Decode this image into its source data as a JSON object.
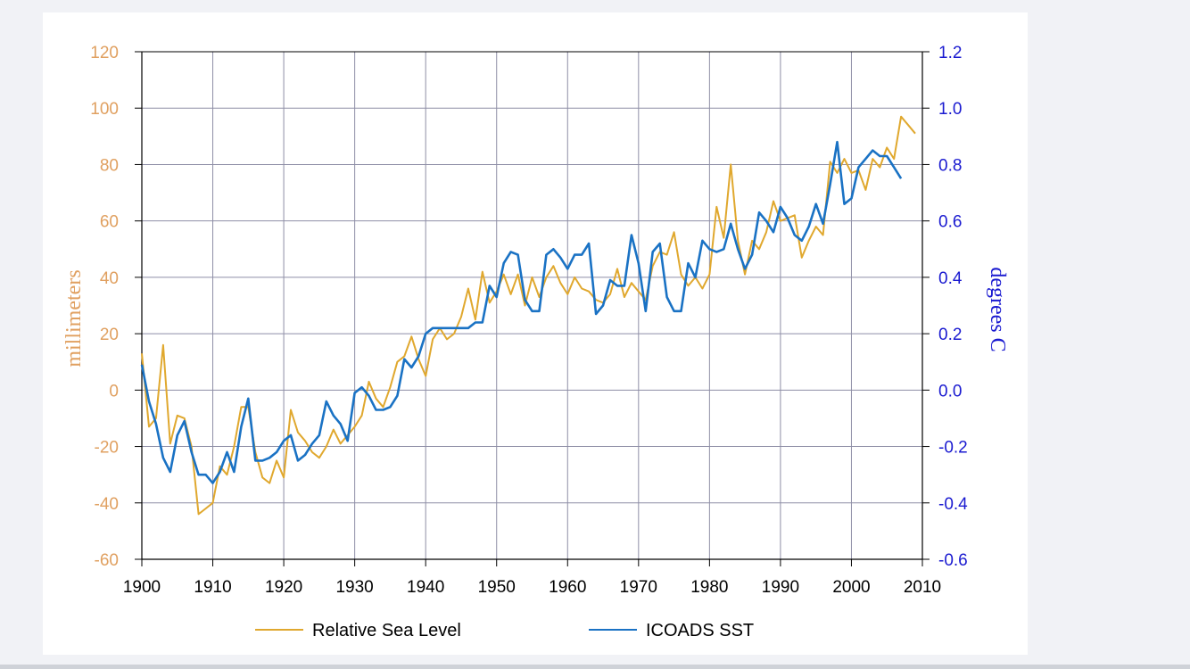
{
  "chart_data": {
    "type": "line",
    "title": "",
    "xlabel": "",
    "ylabel_left": "millimeters",
    "ylabel_right": "degrees C",
    "xlim": [
      1900,
      2010
    ],
    "ylim_left": [
      -60,
      120
    ],
    "ylim_right": [
      -0.6,
      1.2
    ],
    "x_ticks": [
      1900,
      1910,
      1920,
      1930,
      1940,
      1950,
      1960,
      1970,
      1980,
      1990,
      2000,
      2010
    ],
    "y_left_ticks": [
      "-60",
      "-40",
      "-20",
      "0",
      "20",
      "40",
      "60",
      "80",
      "100",
      "120"
    ],
    "y_right_ticks": [
      "-0.6",
      "-0.4",
      "-0.2",
      "0.0",
      "0.2",
      "0.4",
      "0.6",
      "0.8",
      "1.0",
      "1.2"
    ],
    "grid": true,
    "legend_position": "bottom",
    "series": [
      {
        "name": "Relative Sea Level",
        "axis": "left",
        "color": "#e0a82e",
        "x": [
          1900,
          1901,
          1902,
          1903,
          1904,
          1905,
          1906,
          1907,
          1908,
          1909,
          1910,
          1911,
          1912,
          1913,
          1914,
          1915,
          1916,
          1917,
          1918,
          1919,
          1920,
          1921,
          1922,
          1923,
          1924,
          1925,
          1926,
          1927,
          1928,
          1929,
          1930,
          1931,
          1932,
          1933,
          1934,
          1935,
          1936,
          1937,
          1938,
          1939,
          1940,
          1941,
          1942,
          1943,
          1944,
          1945,
          1946,
          1947,
          1948,
          1949,
          1950,
          1951,
          1952,
          1953,
          1954,
          1955,
          1956,
          1957,
          1958,
          1959,
          1960,
          1961,
          1962,
          1963,
          1964,
          1965,
          1966,
          1967,
          1968,
          1969,
          1970,
          1971,
          1972,
          1973,
          1974,
          1975,
          1976,
          1977,
          1978,
          1979,
          1980,
          1981,
          1982,
          1983,
          1984,
          1985,
          1986,
          1987,
          1988,
          1989,
          1990,
          1991,
          1992,
          1993,
          1994,
          1995,
          1996,
          1997,
          1998,
          1999,
          2000,
          2001,
          2002,
          2003,
          2004,
          2005,
          2006,
          2007,
          2008,
          2009
        ],
        "values": [
          13,
          -13,
          -10,
          16,
          -19,
          -9,
          -10,
          -20,
          -44,
          -42,
          -40,
          -27,
          -30,
          -20,
          -6,
          -6,
          -22,
          -31,
          -33,
          -25,
          -31,
          -7,
          -15,
          -18,
          -22,
          -24,
          -20,
          -14,
          -19,
          -16,
          -13,
          -9,
          3,
          -3,
          -6,
          1,
          10,
          12,
          19,
          11,
          5,
          18,
          22,
          18,
          20,
          26,
          36,
          25,
          42,
          31,
          35,
          41,
          34,
          41,
          30,
          40,
          33,
          40,
          44,
          38,
          34,
          40,
          36,
          35,
          32,
          31,
          34,
          43,
          33,
          38,
          35,
          32,
          44,
          49,
          48,
          56,
          41,
          37,
          40,
          36,
          41,
          65,
          54,
          80,
          53,
          41,
          53,
          50,
          56,
          67,
          60,
          61,
          62,
          47,
          53,
          58,
          55,
          81,
          77,
          82,
          77,
          78,
          71,
          82,
          79,
          86,
          82,
          97,
          94,
          91
        ]
      },
      {
        "name": "ICOADS SST",
        "axis": "right",
        "color": "#1a72c4",
        "x": [
          1900,
          1901,
          1902,
          1903,
          1904,
          1905,
          1906,
          1907,
          1908,
          1909,
          1910,
          1911,
          1912,
          1913,
          1914,
          1915,
          1916,
          1917,
          1918,
          1919,
          1920,
          1921,
          1922,
          1923,
          1924,
          1925,
          1926,
          1927,
          1928,
          1929,
          1930,
          1931,
          1932,
          1933,
          1934,
          1935,
          1936,
          1937,
          1938,
          1939,
          1940,
          1941,
          1942,
          1943,
          1944,
          1945,
          1946,
          1947,
          1948,
          1949,
          1950,
          1951,
          1952,
          1953,
          1954,
          1955,
          1956,
          1957,
          1958,
          1959,
          1960,
          1961,
          1962,
          1963,
          1964,
          1965,
          1966,
          1967,
          1968,
          1969,
          1970,
          1971,
          1972,
          1973,
          1974,
          1975,
          1976,
          1977,
          1978,
          1979,
          1980,
          1981,
          1982,
          1983,
          1984,
          1985,
          1986,
          1987,
          1988,
          1989,
          1990,
          1991,
          1992,
          1993,
          1994,
          1995,
          1996,
          1997,
          1998,
          1999,
          2000,
          2001,
          2002,
          2003,
          2004,
          2005,
          2006,
          2007
        ],
        "values": [
          0.09,
          -0.04,
          -0.12,
          -0.24,
          -0.29,
          -0.16,
          -0.11,
          -0.22,
          -0.3,
          -0.3,
          -0.33,
          -0.29,
          -0.22,
          -0.29,
          -0.13,
          -0.03,
          -0.25,
          -0.25,
          -0.24,
          -0.22,
          -0.18,
          -0.16,
          -0.25,
          -0.23,
          -0.19,
          -0.16,
          -0.04,
          -0.09,
          -0.12,
          -0.18,
          -0.01,
          0.01,
          -0.02,
          -0.07,
          -0.07,
          -0.06,
          -0.02,
          0.11,
          0.08,
          0.12,
          0.2,
          0.22,
          0.22,
          0.22,
          0.22,
          0.22,
          0.22,
          0.24,
          0.24,
          0.37,
          0.33,
          0.45,
          0.49,
          0.48,
          0.32,
          0.28,
          0.28,
          0.48,
          0.5,
          0.47,
          0.43,
          0.48,
          0.48,
          0.52,
          0.27,
          0.3,
          0.39,
          0.37,
          0.37,
          0.55,
          0.45,
          0.28,
          0.49,
          0.52,
          0.33,
          0.28,
          0.28,
          0.45,
          0.4,
          0.53,
          0.5,
          0.49,
          0.5,
          0.59,
          0.5,
          0.43,
          0.48,
          0.63,
          0.6,
          0.56,
          0.65,
          0.61,
          0.55,
          0.53,
          0.58,
          0.66,
          0.59,
          0.73,
          0.88,
          0.66,
          0.68,
          0.79,
          0.82,
          0.85,
          0.83,
          0.83,
          0.79,
          0.75
        ]
      }
    ]
  }
}
